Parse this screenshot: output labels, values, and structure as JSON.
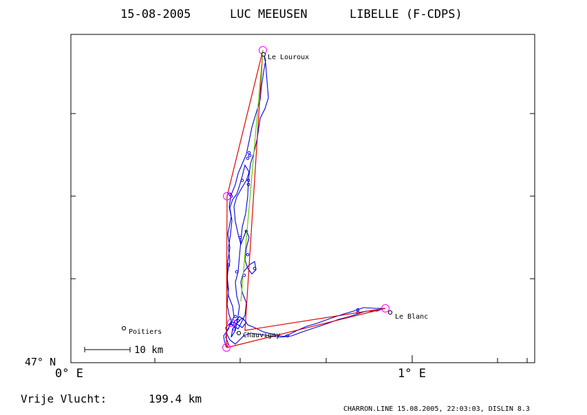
{
  "header": {
    "date": "15-08-2005",
    "pilot": "LUC MEEUSEN",
    "glider": "LIBELLE (F-CDPS)"
  },
  "axes": {
    "y_tick_label": "47° N",
    "x_tick_labels": [
      "0° E",
      "1° E"
    ]
  },
  "places": [
    {
      "name": "Le Louroux",
      "lon": 0.55,
      "lat": 47.51
    },
    {
      "name": "Le Blanc",
      "lon": 0.92,
      "lat": 47.04
    },
    {
      "name": "Poitiers",
      "lon": 0.17,
      "lat": 47.026
    },
    {
      "name": "Chauvigny",
      "lon": 0.48,
      "lat": 47.02
    }
  ],
  "turnpoints": [
    {
      "lon": 0.549,
      "lat": 47.512
    },
    {
      "lon": 0.444,
      "lat": 47.288
    },
    {
      "lon": 0.448,
      "lat": 47.045
    },
    {
      "lon": 0.905,
      "lat": 47.048
    },
    {
      "lon": 0.444,
      "lat": 47.012
    }
  ],
  "scale_bar": {
    "label": "10 km",
    "km": 10
  },
  "footer": {
    "distance_label": "Vrije Vlucht:",
    "distance_value": "199.4 km",
    "credit": "CHARRON.LINE 15.08.2005, 22:03:03, DISLIN 8.3"
  },
  "colors": {
    "task_route": "#e00000",
    "closing_leg": "#66cc00",
    "flight_track": "#0000dd",
    "turnpoint_marker": "#ff00ff",
    "frame": "#000000",
    "background": "#ffffff"
  },
  "map_range": {
    "lon": [
      0,
      1.32
    ],
    "lat": [
      47,
      47.55
    ]
  }
}
